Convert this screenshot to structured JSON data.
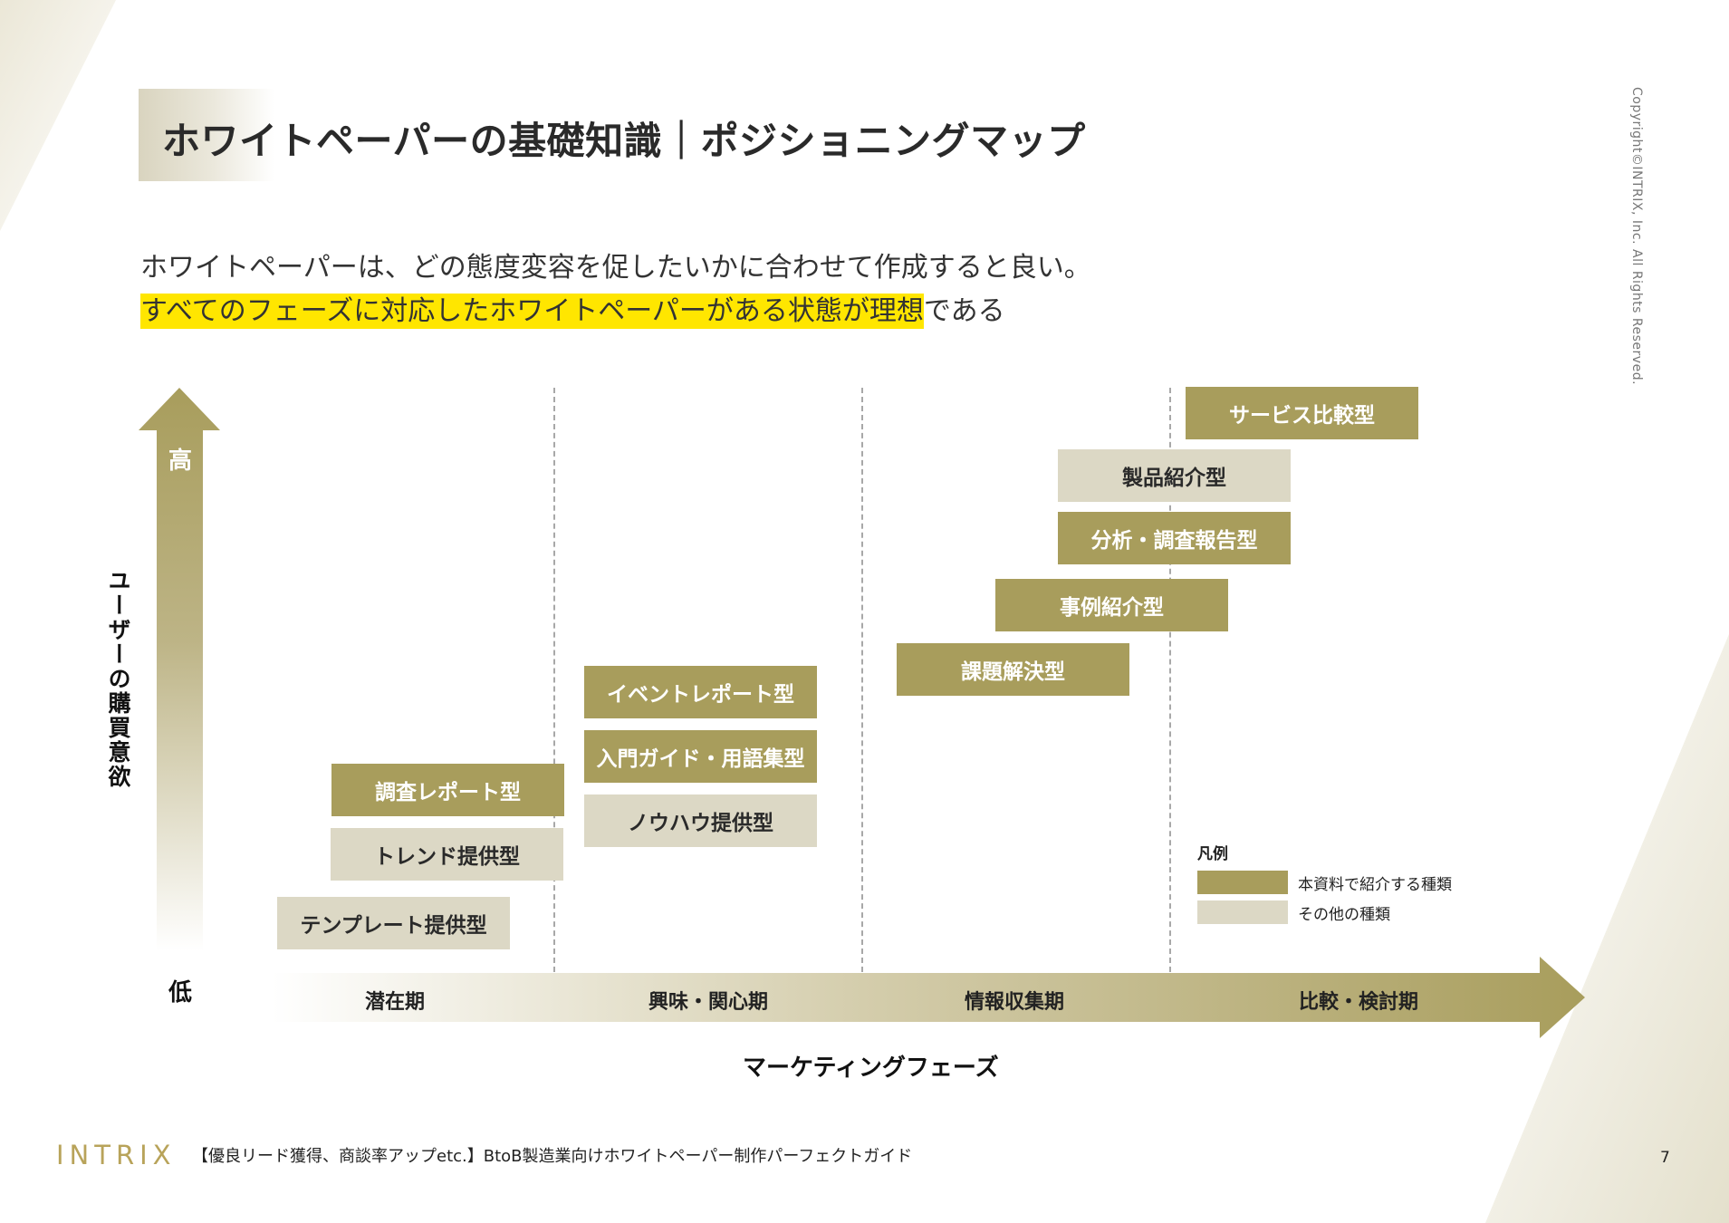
{
  "header": {
    "title": "ホワイトペーパーの基礎知識｜ポジショニングマップ",
    "copyright": "Copyright©INTRIX, Inc. All Rights Reserved."
  },
  "lead": {
    "line1": "ホワイトペーパーは、どの態度変容を促したいかに合わせて作成すると良い。",
    "line2_highlight": "すべてのフェーズに対応したホワイトペーパーがある状態が理想",
    "line2_rest": "である"
  },
  "diagram": {
    "y_axis": {
      "title": "ユーザーの購買意欲",
      "high": "高",
      "low": "低"
    },
    "x_axis": {
      "title": "マーケティングフェーズ",
      "phases": [
        "潜在期",
        "興味・関心期",
        "情報収集期",
        "比較・検討期"
      ]
    },
    "items": [
      {
        "label": "サービス比較型",
        "category": "main"
      },
      {
        "label": "製品紹介型",
        "category": "other"
      },
      {
        "label": "分析・調査報告型",
        "category": "main"
      },
      {
        "label": "事例紹介型",
        "category": "main"
      },
      {
        "label": "課題解決型",
        "category": "main"
      },
      {
        "label": "イベントレポート型",
        "category": "main"
      },
      {
        "label": "入門ガイド・用語集型",
        "category": "main"
      },
      {
        "label": "ノウハウ提供型",
        "category": "other"
      },
      {
        "label": "調査レポート型",
        "category": "main"
      },
      {
        "label": "トレンド提供型",
        "category": "other"
      },
      {
        "label": "テンプレート提供型",
        "category": "other"
      }
    ],
    "legend": {
      "title": "凡例",
      "main": "本資料で紹介する種類",
      "other": "その他の種類"
    },
    "colors": {
      "main": "#a89d5c",
      "other": "#dcd8c5"
    }
  },
  "footer": {
    "logo": "INTRIX",
    "text": "【優良リード獲得、商談率アップetc.】BtoB製造業向けホワイトペーパー制作パーフェクトガイド",
    "page": "7"
  }
}
